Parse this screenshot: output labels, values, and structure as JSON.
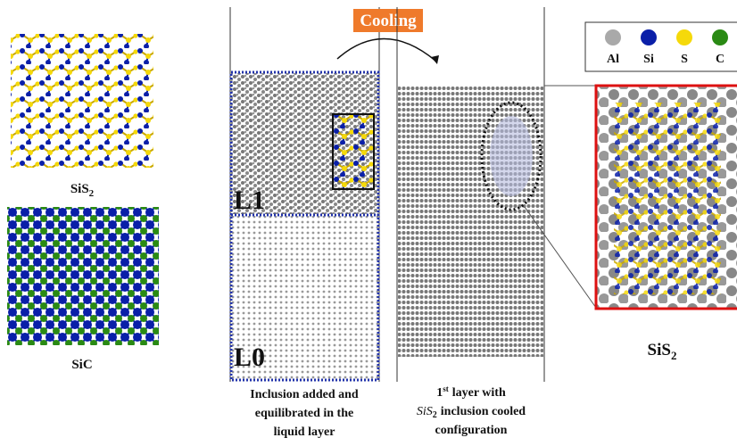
{
  "labels": {
    "sis2_left": {
      "text": "SiS",
      "sub": "2"
    },
    "sic": "SiC",
    "cooling": "Cooling",
    "l1": "L1",
    "l0": "L0",
    "sis2_right": {
      "text": "SiS",
      "sub": "2"
    }
  },
  "legend": [
    {
      "label": "Al",
      "color": "#a9a9a9"
    },
    {
      "label": "Si",
      "color": "#0a1fa8"
    },
    {
      "label": "S",
      "color": "#f5d90a"
    },
    {
      "label": "C",
      "color": "#2a8a14"
    }
  ],
  "left_caption": [
    "Inclusion added and",
    "equilibrated in the",
    "liquid layer"
  ],
  "right_caption": {
    "line1": {
      "num": "1",
      "sup": "st",
      "rest": "layer with"
    },
    "line2": {
      "formula": "SiS",
      "sub": "2",
      "rest": "inclusion cooled"
    },
    "line3": "configuration"
  }
}
